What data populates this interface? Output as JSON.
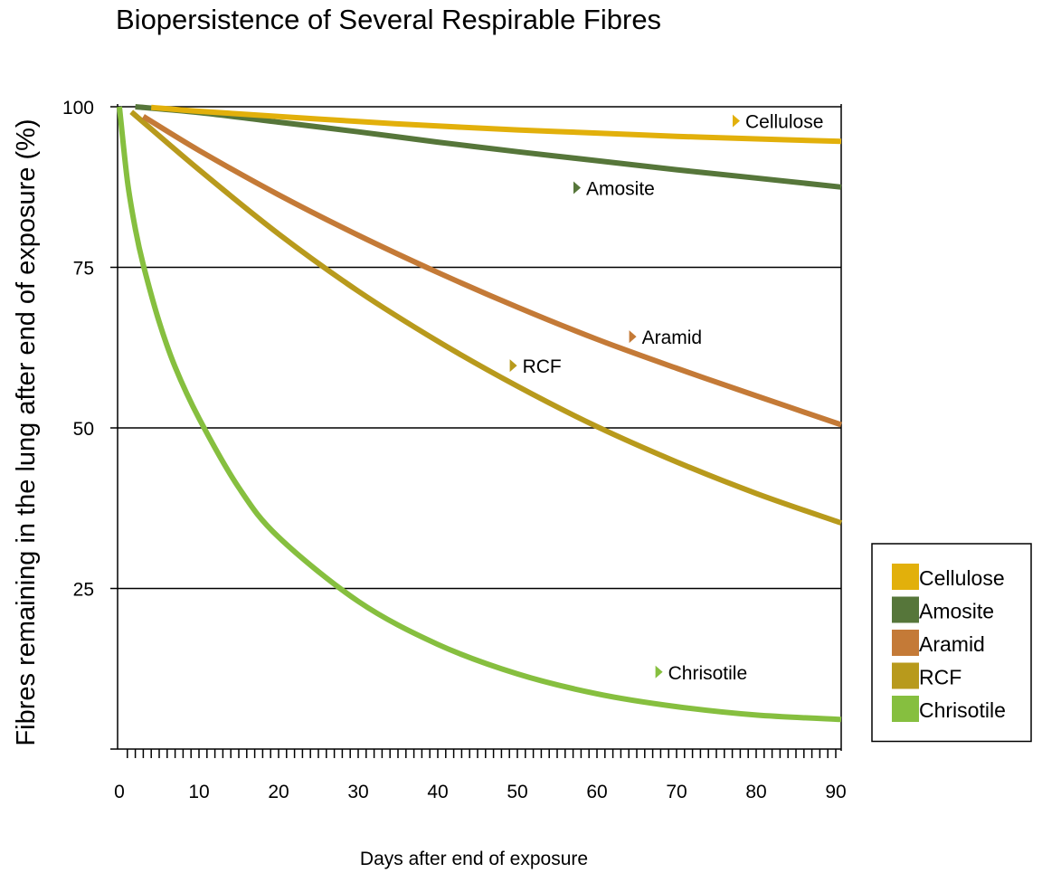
{
  "chart_data": {
    "type": "line",
    "title": "Biopersistence of Several Respirable Fibres",
    "xlabel": "Days after end of exposure",
    "ylabel": "Fibres remaining in the lung after end of exposure (%)",
    "xlim": [
      0,
      91
    ],
    "ylim": [
      0,
      100
    ],
    "x_ticks": [
      0,
      10,
      20,
      30,
      40,
      50,
      60,
      70,
      80,
      90
    ],
    "y_ticks": [
      25,
      50,
      75,
      100
    ],
    "grid": "horizontal",
    "legend_position": "right",
    "series": [
      {
        "name": "Cellulose",
        "color": "#e2b00b",
        "x": [
          4,
          10,
          20,
          30,
          40,
          50,
          60,
          70,
          80,
          91
        ],
        "y": [
          99.9,
          99.3,
          98.5,
          97.7,
          97.0,
          96.4,
          95.9,
          95.4,
          95.0,
          94.6
        ],
        "annotation": {
          "label": "Cellulose",
          "x": 77.5,
          "y": 97.8
        }
      },
      {
        "name": "Amosite",
        "color": "#56763a",
        "x": [
          2,
          10,
          20,
          30,
          40,
          50,
          60,
          70,
          80,
          91
        ],
        "y": [
          100,
          99.1,
          97.6,
          96.1,
          94.5,
          93.0,
          91.6,
          90.2,
          88.9,
          87.5
        ],
        "annotation": {
          "label": "Amosite",
          "x": 57.5,
          "y": 87.4
        }
      },
      {
        "name": "Aramid",
        "color": "#c47a37",
        "x": [
          3,
          10,
          20,
          30,
          40,
          50,
          60,
          70,
          80,
          91
        ],
        "y": [
          98.5,
          93.2,
          86.3,
          80.0,
          74.2,
          68.8,
          63.8,
          59.3,
          55.0,
          50.5
        ],
        "annotation": {
          "label": "Aramid",
          "x": 64.5,
          "y": 64.2
        }
      },
      {
        "name": "RCF",
        "color": "#b89a1c",
        "x": [
          1.5,
          10,
          20,
          30,
          40,
          50,
          60,
          70,
          80,
          91
        ],
        "y": [
          99.2,
          90.2,
          80.2,
          71.3,
          63.5,
          56.5,
          50.2,
          44.7,
          39.8,
          35.2
        ],
        "annotation": {
          "label": "RCF",
          "x": 49.5,
          "y": 59.7
        }
      },
      {
        "name": "Chrisotile",
        "color": "#86bf3f",
        "x": [
          0,
          1,
          2,
          3,
          5,
          7,
          10,
          15,
          20,
          30,
          40,
          50,
          60,
          70,
          80,
          91
        ],
        "y": [
          100,
          88.5,
          81.0,
          75.4,
          66.5,
          59.5,
          51.5,
          40.7,
          33.0,
          23.0,
          16.3,
          11.7,
          8.6,
          6.6,
          5.3,
          4.6
        ],
        "annotation": {
          "label": "Chrisotile",
          "x": 67.8,
          "y": 12.0
        }
      }
    ]
  }
}
